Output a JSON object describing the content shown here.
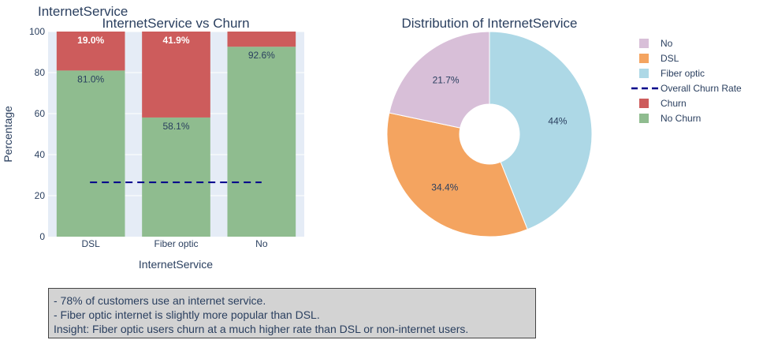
{
  "figure_title": "InternetService",
  "colors": {
    "churn": "#cd5c5c",
    "no_churn": "#8fbc8f",
    "overall_line": "#00008b",
    "plot_bg": "#e5ecf6",
    "pie_no": "#d8bfd8",
    "pie_dsl": "#f4a460",
    "pie_fiber": "#add8e6"
  },
  "chart_data": [
    {
      "type": "bar",
      "title": "InternetService vs Churn",
      "xlabel": "InternetService",
      "ylabel": "Percentage",
      "categories": [
        "DSL",
        "Fiber optic",
        "No"
      ],
      "ylim": [
        0,
        100
      ],
      "yticks": [
        0,
        20,
        40,
        60,
        80,
        100
      ],
      "stacked": true,
      "series": [
        {
          "name": "No Churn",
          "values": [
            81.0,
            58.1,
            92.6
          ],
          "labels": [
            "81.0%",
            "58.1%",
            "92.6%"
          ]
        },
        {
          "name": "Churn",
          "values": [
            19.0,
            41.9,
            7.4
          ],
          "labels": [
            "19.0%",
            "41.9%",
            ""
          ]
        }
      ],
      "reference_line": {
        "name": "Overall Churn Rate",
        "y": 26.5,
        "style": "dashed"
      },
      "grid": true
    },
    {
      "type": "pie",
      "title": "Distribution of InternetService",
      "hole": true,
      "labels": [
        "Fiber optic",
        "DSL",
        "No"
      ],
      "values": [
        44.0,
        34.4,
        21.7
      ],
      "text": [
        "44%",
        "34.4%",
        "21.7%"
      ]
    }
  ],
  "legend": {
    "position": "top-right",
    "items": [
      {
        "label": "No",
        "kind": "square",
        "color": "#d8bfd8"
      },
      {
        "label": "DSL",
        "kind": "square",
        "color": "#f4a460"
      },
      {
        "label": "Fiber optic",
        "kind": "square",
        "color": "#add8e6"
      },
      {
        "label": "Overall Churn Rate",
        "kind": "dash",
        "color": "#00008b"
      },
      {
        "label": "Churn",
        "kind": "square",
        "color": "#cd5c5c"
      },
      {
        "label": "No Churn",
        "kind": "square",
        "color": "#8fbc8f"
      }
    ]
  },
  "notes": [
    "- 78% of customers use an internet service.",
    "- Fiber optic internet is slightly more popular than DSL.",
    "Insight: Fiber optic users churn at a much higher rate than DSL or non-internet users."
  ]
}
